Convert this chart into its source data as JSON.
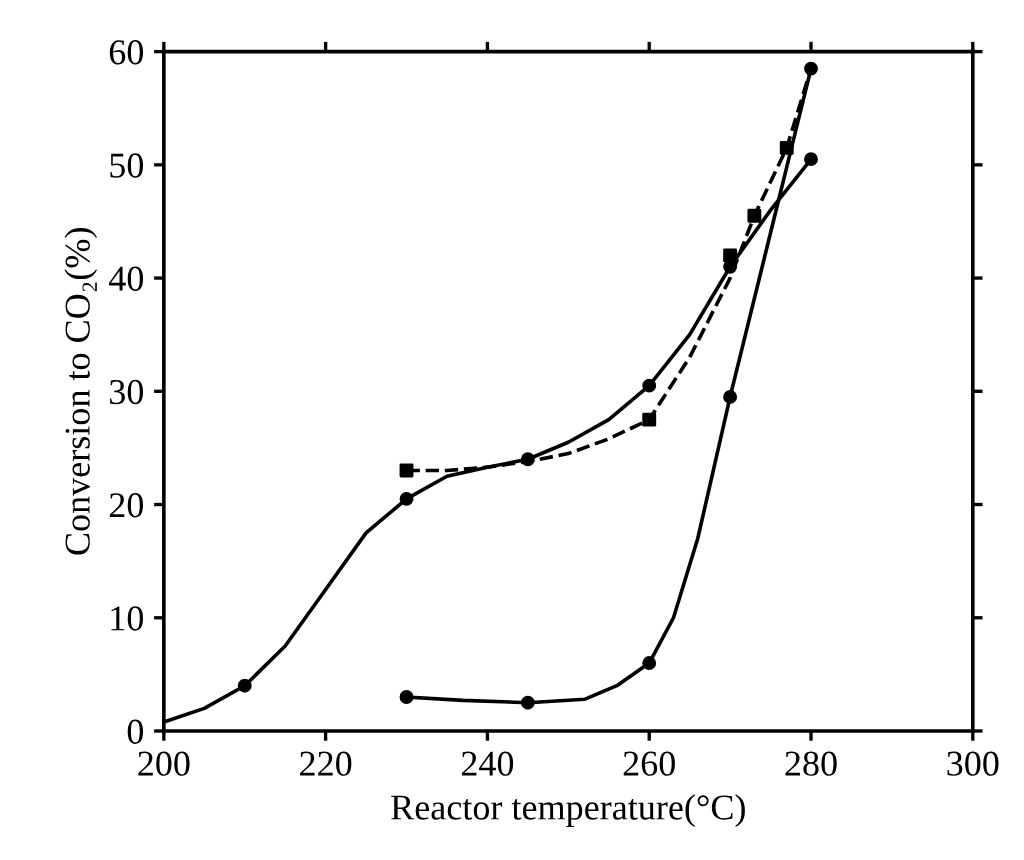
{
  "chart_data": {
    "type": "line",
    "xlabel": "Reactor temperature(°C)",
    "ylabel": "Conversion to CO₂(%)",
    "xlim": [
      200,
      300
    ],
    "ylim": [
      0,
      60
    ],
    "xticks": [
      200,
      220,
      240,
      260,
      280,
      300
    ],
    "yticks": [
      0,
      10,
      20,
      30,
      40,
      50,
      60
    ],
    "grid": false,
    "legend": false,
    "series": [
      {
        "color": "#000000",
        "line_style": "solid",
        "marker": "none",
        "x": [
          200,
          205,
          210,
          215,
          220,
          225,
          230,
          235,
          240,
          245,
          250,
          255,
          260,
          265,
          270,
          275,
          280
        ],
        "values": [
          0.8,
          2,
          4,
          7.5,
          12.5,
          17.5,
          20.5,
          22.5,
          23.3,
          24,
          25.5,
          27.5,
          30.5,
          35,
          41,
          46,
          50.5
        ]
      },
      {
        "type": "scatter",
        "color": "#000000",
        "marker": "circle",
        "x": [
          210,
          230,
          245,
          260,
          270,
          280
        ],
        "values": [
          4,
          20.5,
          24,
          30.5,
          41,
          50.5
        ]
      },
      {
        "color": "#000000",
        "line_style": "dashed",
        "marker": "none",
        "x": [
          230,
          235,
          240,
          245,
          250,
          255,
          260,
          265,
          270,
          273,
          277,
          280
        ],
        "values": [
          23,
          23,
          23.3,
          23.8,
          24.5,
          25.8,
          27.5,
          33,
          40,
          45.5,
          51.5,
          58.5
        ]
      },
      {
        "type": "scatter",
        "color": "#000000",
        "marker": "square",
        "x": [
          230,
          260,
          270,
          273,
          277
        ],
        "values": [
          23,
          27.5,
          42,
          45.5,
          51.5
        ]
      },
      {
        "color": "#000000",
        "line_style": "solid",
        "marker": "none",
        "x": [
          230,
          237,
          245,
          252,
          256,
          260,
          263,
          266,
          270,
          275,
          280
        ],
        "values": [
          3,
          2.7,
          2.5,
          2.8,
          4,
          6,
          10,
          17,
          29.5,
          44,
          58.5
        ]
      },
      {
        "type": "scatter",
        "color": "#000000",
        "marker": "circle",
        "x": [
          230,
          245,
          260,
          270,
          280
        ],
        "values": [
          3,
          2.5,
          6,
          29.5,
          58.5
        ]
      }
    ]
  }
}
